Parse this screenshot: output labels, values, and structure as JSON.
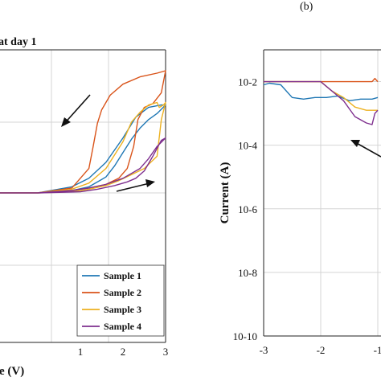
{
  "chart_data": [
    {
      "type": "line",
      "title": "at day 1",
      "xlabel": "e (V)",
      "ylabel": "",
      "x_ticks": [
        "1",
        "2",
        "3"
      ],
      "xlim": [
        -1,
        3
      ],
      "y_ticks": [],
      "grid": true,
      "legend": {
        "position": "bottom-right",
        "entries": [
          "Sample 1",
          "Sample 2",
          "Sample 3",
          "Sample 4"
        ]
      },
      "colors": [
        "#1f77b4",
        "#d95319",
        "#edb120",
        "#7e2f8e"
      ],
      "series": [
        {
          "name": "Sample 1",
          "x": [
            -1.0,
            0.0,
            0.8,
            1.2,
            1.6,
            2.0,
            2.3,
            2.6,
            2.9,
            3.0,
            2.8,
            2.6,
            2.4,
            2.2,
            2.0,
            1.8,
            1.6,
            1.2,
            0.8,
            0.0,
            -1.0
          ],
          "y": [
            0.0,
            0.0,
            0.05,
            0.12,
            0.25,
            0.45,
            0.62,
            0.7,
            0.72,
            0.72,
            0.65,
            0.6,
            0.53,
            0.44,
            0.33,
            0.22,
            0.13,
            0.05,
            0.02,
            0.0,
            0.0
          ]
        },
        {
          "name": "Sample 2",
          "x": [
            -1.0,
            0.0,
            0.8,
            1.2,
            1.3,
            1.4,
            1.5,
            1.7,
            2.0,
            2.4,
            2.8,
            3.0,
            2.9,
            2.7,
            2.5,
            2.35,
            2.25,
            2.1,
            1.9,
            1.6,
            1.2,
            0.8,
            0.0,
            -1.0
          ],
          "y": [
            0.0,
            0.0,
            0.04,
            0.2,
            0.38,
            0.57,
            0.68,
            0.8,
            0.89,
            0.95,
            0.98,
            1.0,
            0.82,
            0.73,
            0.7,
            0.6,
            0.38,
            0.2,
            0.12,
            0.07,
            0.04,
            0.02,
            0.0,
            0.0
          ]
        },
        {
          "name": "Sample 3",
          "x": [
            -1.0,
            0.0,
            0.8,
            1.2,
            1.6,
            2.0,
            2.2,
            2.4,
            2.6,
            2.8,
            2.85,
            2.95,
            3.0,
            2.9,
            2.8,
            2.5,
            2.2,
            1.9,
            1.6,
            1.2,
            0.8,
            0.0,
            -1.0
          ],
          "y": [
            0.0,
            0.0,
            0.03,
            0.08,
            0.2,
            0.42,
            0.58,
            0.66,
            0.72,
            0.74,
            0.7,
            0.72,
            0.74,
            0.6,
            0.3,
            0.2,
            0.15,
            0.1,
            0.06,
            0.03,
            0.01,
            0.0,
            0.0
          ]
        },
        {
          "name": "Sample 4",
          "x": [
            -1.0,
            0.0,
            0.8,
            1.2,
            1.6,
            2.0,
            2.4,
            2.6,
            2.8,
            3.0,
            2.9,
            2.7,
            2.5,
            2.3,
            2.1,
            1.8,
            1.4,
            1.0,
            0.0,
            -1.0
          ],
          "y": [
            0.0,
            0.0,
            0.02,
            0.04,
            0.07,
            0.12,
            0.2,
            0.28,
            0.38,
            0.45,
            0.43,
            0.3,
            0.18,
            0.12,
            0.09,
            0.06,
            0.03,
            0.01,
            0.0,
            0.0
          ]
        }
      ]
    },
    {
      "type": "line",
      "panel_label": "(b)",
      "title": "",
      "xlabel": "",
      "ylabel": "Current (A)",
      "yscale": "log",
      "ylim": [
        1e-10,
        0.1
      ],
      "xlim": [
        -3,
        0
      ],
      "x_ticks": [
        "-3",
        "-2",
        "-1"
      ],
      "y_ticks": [
        {
          "value": -2,
          "label": "10-2"
        },
        {
          "value": -4,
          "label": "10-4"
        },
        {
          "value": -6,
          "label": "10-6"
        },
        {
          "value": -8,
          "label": "10-8"
        },
        {
          "value": -10,
          "label": "10-10"
        }
      ],
      "grid": true,
      "colors": [
        "#1f77b4",
        "#d95319",
        "#edb120",
        "#7e2f8e"
      ],
      "series": [
        {
          "x": [
            -3.0,
            -2.9,
            -2.7,
            -2.5,
            -2.3,
            -2.1,
            -1.9,
            -1.7,
            -1.5,
            -1.3,
            -1.1,
            -1.0
          ],
          "log10_y": [
            -2.1,
            -2.05,
            -2.1,
            -2.5,
            -2.55,
            -2.5,
            -2.5,
            -2.45,
            -2.6,
            -2.55,
            -2.55,
            -2.5
          ]
        },
        {
          "x": [
            -3.0,
            -2.5,
            -2.0,
            -1.5,
            -1.1,
            -1.05,
            -1.0
          ],
          "log10_y": [
            -2.0,
            -2.0,
            -2.0,
            -2.0,
            -2.0,
            -1.9,
            -2.0
          ]
        },
        {
          "x": [
            -3.0,
            -2.5,
            -2.0,
            -1.8,
            -1.6,
            -1.4,
            -1.2,
            -1.0
          ],
          "log10_y": [
            -2.0,
            -2.0,
            -2.0,
            -2.3,
            -2.5,
            -2.8,
            -2.9,
            -2.9
          ]
        },
        {
          "x": [
            -3.0,
            -2.5,
            -2.0,
            -1.8,
            -1.6,
            -1.4,
            -1.2,
            -1.1,
            -1.05,
            -1.0
          ],
          "log10_y": [
            -2.0,
            -2.0,
            -2.0,
            -2.3,
            -2.6,
            -3.1,
            -3.3,
            -3.35,
            -3.0,
            -2.9
          ]
        }
      ]
    }
  ]
}
